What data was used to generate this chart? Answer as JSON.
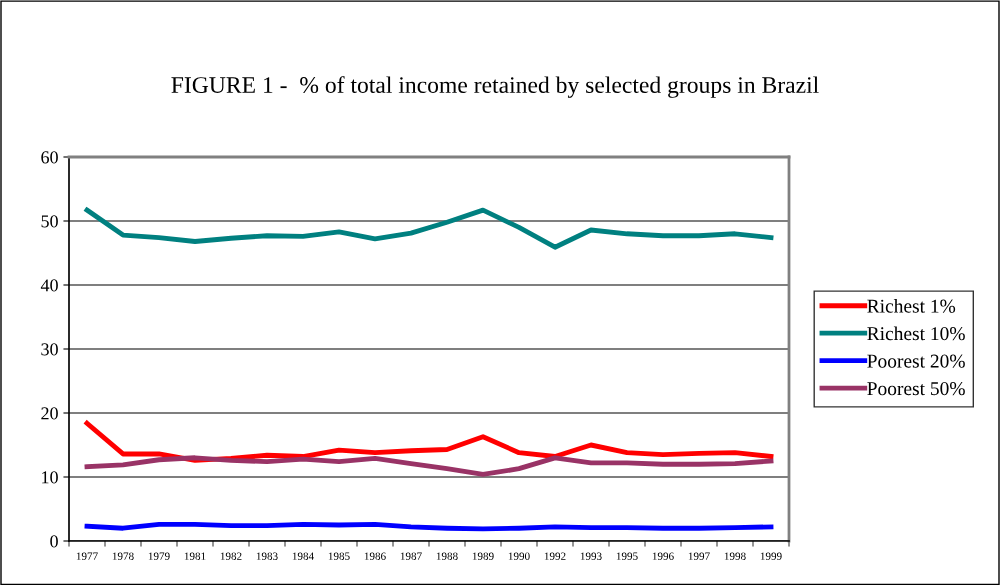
{
  "chart_data": {
    "type": "line",
    "title": "FIGURE 1 -  % of total income retained by selected groups in Brazil",
    "categories": [
      "1977",
      "1978",
      "1979",
      "1981",
      "1982",
      "1983",
      "1984",
      "1985",
      "1986",
      "1987",
      "1988",
      "1989",
      "1990",
      "1992",
      "1993",
      "1995",
      "1996",
      "1997",
      "1998",
      "1999"
    ],
    "series": [
      {
        "name": "Richest 1%",
        "color": "#ff0000",
        "values": [
          18.4,
          13.6,
          13.6,
          12.6,
          12.9,
          13.4,
          13.2,
          14.2,
          13.8,
          14.1,
          14.3,
          16.3,
          13.8,
          13.2,
          15.0,
          13.8,
          13.5,
          13.7,
          13.8,
          13.2
        ]
      },
      {
        "name": "Richest 10%",
        "color": "#008080",
        "values": [
          51.7,
          47.8,
          47.4,
          46.8,
          47.3,
          47.7,
          47.6,
          48.3,
          47.2,
          48.1,
          49.8,
          51.7,
          49.0,
          45.9,
          48.6,
          48.0,
          47.7,
          47.7,
          48.0,
          47.4
        ]
      },
      {
        "name": "Poorest 20%",
        "color": "#0000ff",
        "values": [
          2.3,
          2.0,
          2.6,
          2.6,
          2.4,
          2.4,
          2.6,
          2.5,
          2.6,
          2.2,
          2.0,
          1.9,
          2.0,
          2.2,
          2.1,
          2.1,
          2.0,
          2.0,
          2.1,
          2.2
        ]
      },
      {
        "name": "Poorest 50%",
        "color": "#993366",
        "values": [
          11.6,
          11.9,
          12.7,
          13.0,
          12.6,
          12.4,
          12.8,
          12.4,
          12.9,
          12.1,
          11.3,
          10.4,
          11.3,
          13.0,
          12.2,
          12.2,
          12.0,
          12.0,
          12.1,
          12.5
        ]
      }
    ],
    "ylim": [
      0,
      60
    ],
    "yticks": [
      0,
      10,
      20,
      30,
      40,
      50,
      60
    ],
    "grid": "y",
    "legend": "right",
    "marker": "none",
    "line_style": "solid"
  }
}
